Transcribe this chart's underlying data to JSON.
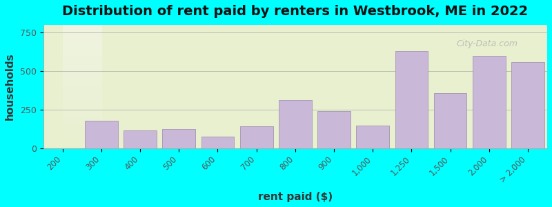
{
  "title": "Distribution of rent paid by renters in Westbrook, ME in 2022",
  "xlabel": "rent paid ($)",
  "ylabel": "households",
  "bar_color": "#C9B8D8",
  "bar_edgecolor": "#9988AA",
  "background_outer": "#00FFFF",
  "background_inner_top": "#e8f0d0",
  "background_inner_bottom": "#f5f5e8",
  "yticks": [
    0,
    250,
    500,
    750
  ],
  "ylim": [
    0,
    800
  ],
  "categories": [
    "200",
    "300",
    "400",
    "500",
    "600",
    "700",
    "800",
    "900",
    "1,000",
    "1,250",
    "1,500",
    "2,000",
    "> 2,000"
  ],
  "values": [
    0,
    180,
    115,
    125,
    75,
    140,
    310,
    240,
    145,
    630,
    355,
    600,
    560
  ],
  "title_fontsize": 14,
  "axis_label_fontsize": 11
}
